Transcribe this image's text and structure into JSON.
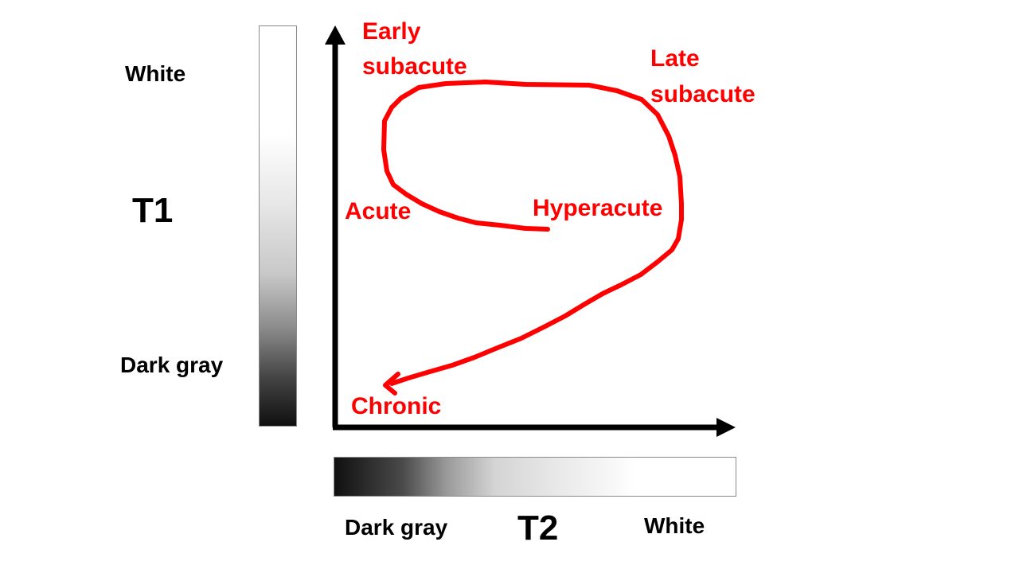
{
  "t1_scale": {
    "axis_title": "T1",
    "top_label": "White",
    "bottom_label": "Dark gray"
  },
  "t2_scale": {
    "axis_title": "T2",
    "left_label": "Dark gray",
    "right_label": "White"
  },
  "stages": {
    "hyperacute": "Hyperacute",
    "acute": "Acute",
    "early_subacute_line1": "Early",
    "early_subacute_line2": "subacute",
    "late_subacute_line1": "Late",
    "late_subacute_line2": "subacute",
    "chronic": "Chronic"
  },
  "colors": {
    "curve": "#ff0000",
    "axes": "#000000",
    "stage_text": "#ff0000"
  }
}
